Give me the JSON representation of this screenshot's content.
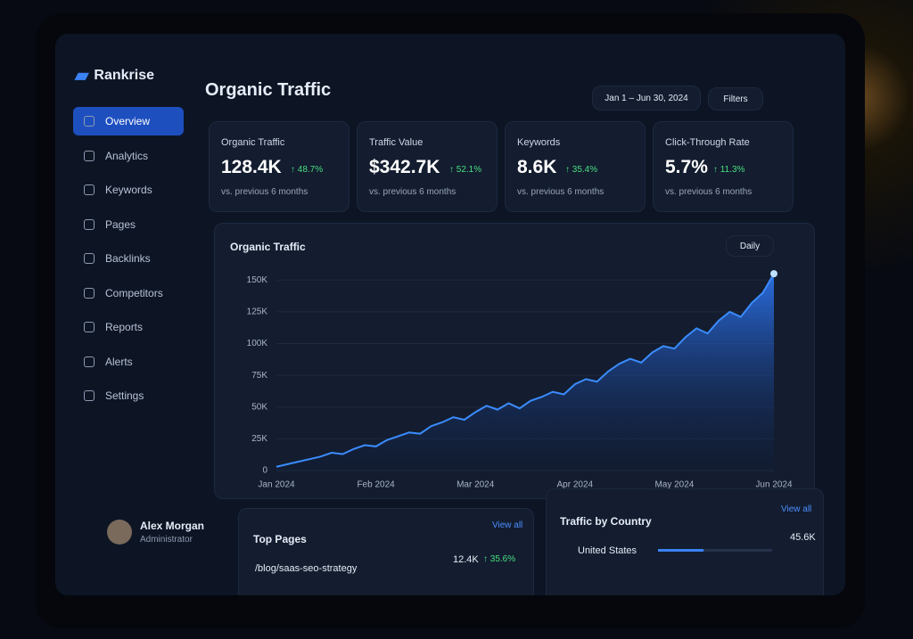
{
  "sidebar": {
    "brand": "Rankrise",
    "nav": [
      "Overview",
      "Analytics",
      "Keywords",
      "Pages",
      "Backlinks",
      "Competitors",
      "Reports",
      "Alerts",
      "Settings"
    ],
    "user": {
      "name": "Alex Morgan",
      "role": "Administrator"
    }
  },
  "header": {
    "title": "Organic Traffic",
    "date_range": "Jan 1 – Jun 30, 2024",
    "filters": "Filters"
  },
  "kpis": [
    {
      "label": "Organic Traffic",
      "value": "128.4K",
      "change": "↑ 48.7%",
      "note": "vs. previous 6 months"
    },
    {
      "label": "Traffic Value",
      "value": "$342.7K",
      "change": "↑ 52.1%",
      "note": "vs. previous 6 months"
    },
    {
      "label": "Keywords",
      "value": "8.6K",
      "change": "↑ 35.4%",
      "note": "vs. previous 6 months"
    },
    {
      "label": "Click-Through Rate",
      "value": "5.7%",
      "change": "↑ 11.3%",
      "note": "vs. previous 6 months"
    }
  ],
  "traffic_chart": {
    "type": "area",
    "title": "Organic Traffic",
    "period": "Daily",
    "color": "#3b8cff",
    "xticks": [
      "Jan 2024",
      "Feb 2024",
      "Mar 2024",
      "Apr 2024",
      "May 2024",
      "Jun 2024"
    ],
    "values": [
      3000,
      5000,
      7000,
      9000,
      11000,
      14000,
      13000,
      17000,
      20000,
      19000,
      24000,
      27000,
      30000,
      29000,
      35000,
      38000,
      42000,
      40000,
      46000,
      51000,
      48000,
      53000,
      49000,
      55000,
      58000,
      62000,
      60000,
      68000,
      72000,
      70000,
      78000,
      84000,
      88000,
      85000,
      93000,
      98000,
      96000,
      105000,
      112000,
      108000,
      118000,
      125000,
      121000,
      132000,
      140000,
      155000
    ],
    "ylim": [
      0,
      160000
    ],
    "yticks": [
      0,
      {
        "value": 25000,
        "label": "25K"
      },
      {
        "value": 50000,
        "label": "50K"
      },
      {
        "value": 75000,
        "label": "75K"
      },
      {
        "value": 100000,
        "label": "100K"
      },
      {
        "value": 125000,
        "label": "125K"
      },
      {
        "value": 150000,
        "label": "150K"
      }
    ],
    "grid": true
  },
  "top_pages": {
    "title": "Top Pages",
    "view_all": "View all",
    "rows": [
      [
        "/blog/saas-seo-strategy",
        "12.4K",
        "↑ 35.6%"
      ]
    ]
  },
  "countries": {
    "title": "Traffic by Country",
    "view_all": "View all",
    "rows": [
      [
        "United States",
        "45.6K"
      ]
    ]
  }
}
